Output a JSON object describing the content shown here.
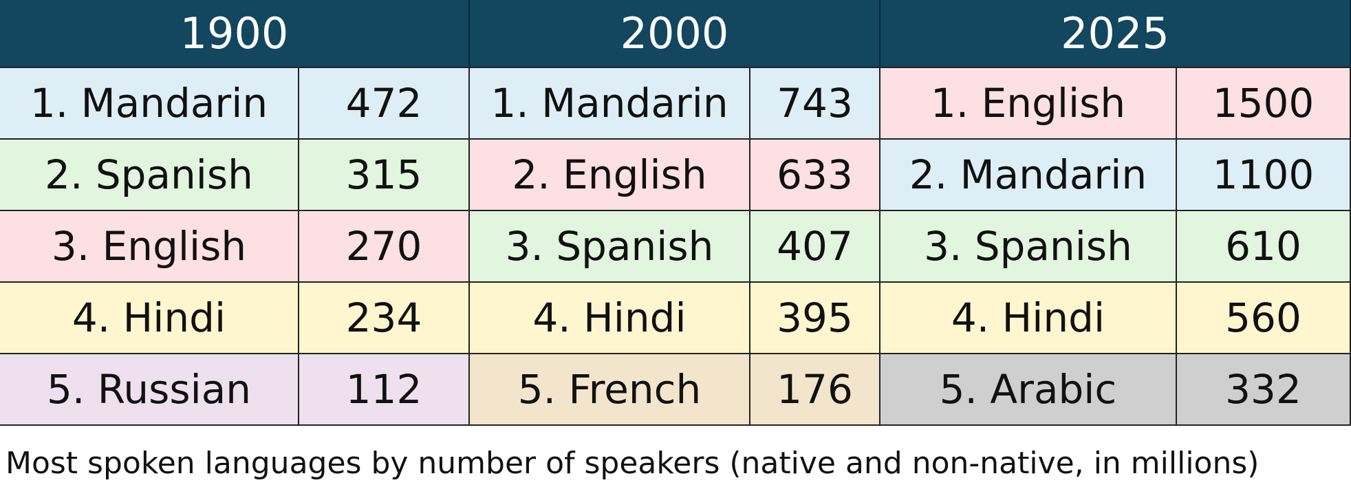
{
  "table": {
    "header_color": "#13465f",
    "columns": [
      {
        "year": "1900",
        "rows": [
          {
            "label": "1. Mandarin",
            "value": 472,
            "color": "#ddeef7"
          },
          {
            "label": "2. Spanish",
            "value": 315,
            "color": "#e2f5df"
          },
          {
            "label": "3. English",
            "value": 270,
            "color": "#fde0e3"
          },
          {
            "label": "4. Hindi",
            "value": 234,
            "color": "#fdf6cf"
          },
          {
            "label": "5. Russian",
            "value": 112,
            "color": "#efe0ef"
          }
        ]
      },
      {
        "year": "2000",
        "rows": [
          {
            "label": "1. Mandarin",
            "value": 743,
            "color": "#ddeef7"
          },
          {
            "label": "2. English",
            "value": 633,
            "color": "#fde0e3"
          },
          {
            "label": "3. Spanish",
            "value": 407,
            "color": "#e2f5df"
          },
          {
            "label": "4. Hindi",
            "value": 395,
            "color": "#fdf6cf"
          },
          {
            "label": "5. French",
            "value": 176,
            "color": "#f3e5cc"
          }
        ]
      },
      {
        "year": "2025",
        "rows": [
          {
            "label": "1. English",
            "value": 1500,
            "color": "#fde0e3"
          },
          {
            "label": "2. Mandarin",
            "value": 1100,
            "color": "#ddeef7"
          },
          {
            "label": "3. Spanish",
            "value": 610,
            "color": "#e2f5df"
          },
          {
            "label": "4. Hindi",
            "value": 560,
            "color": "#fdf6cf"
          },
          {
            "label": "5. Arabic",
            "value": 332,
            "color": "#cfcfcf"
          }
        ]
      }
    ]
  },
  "caption": "Most spoken languages by number of speakers (native and non-native, in millions)"
}
